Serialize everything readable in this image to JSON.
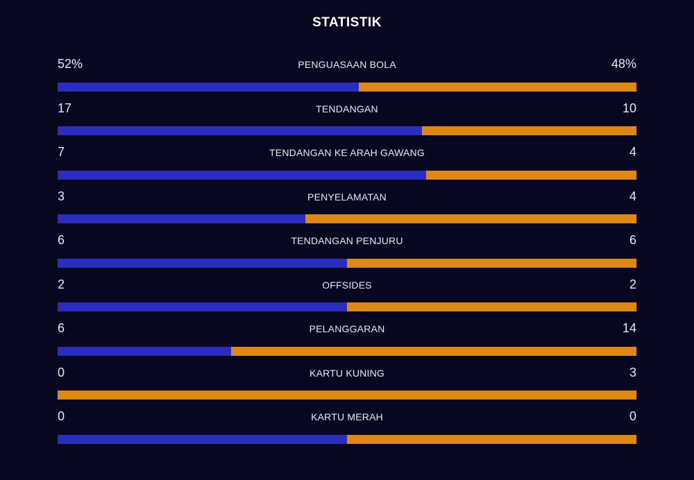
{
  "title": "STATISTIK",
  "colors": {
    "home": "#2a2dbf",
    "away": "#e08912",
    "background": "#070720"
  },
  "stats": [
    {
      "label": "PENGUASAAN BOLA",
      "home": "52%",
      "away": "48%",
      "home_value": 52,
      "away_value": 48
    },
    {
      "label": "TENDANGAN",
      "home": "17",
      "away": "10",
      "home_value": 17,
      "away_value": 10
    },
    {
      "label": "TENDANGAN KE ARAH GAWANG",
      "home": "7",
      "away": "4",
      "home_value": 7,
      "away_value": 4
    },
    {
      "label": "PENYELAMATAN",
      "home": "3",
      "away": "4",
      "home_value": 3,
      "away_value": 4
    },
    {
      "label": "TENDANGAN PENJURU",
      "home": "6",
      "away": "6",
      "home_value": 6,
      "away_value": 6
    },
    {
      "label": "OFFSIDES",
      "home": "2",
      "away": "2",
      "home_value": 2,
      "away_value": 2
    },
    {
      "label": "PELANGGARAN",
      "home": "6",
      "away": "14",
      "home_value": 6,
      "away_value": 14
    },
    {
      "label": "KARTU KUNING",
      "home": "0",
      "away": "3",
      "home_value": 0,
      "away_value": 3
    },
    {
      "label": "KARTU MERAH",
      "home": "0",
      "away": "0",
      "home_value": 0,
      "away_value": 0
    }
  ]
}
